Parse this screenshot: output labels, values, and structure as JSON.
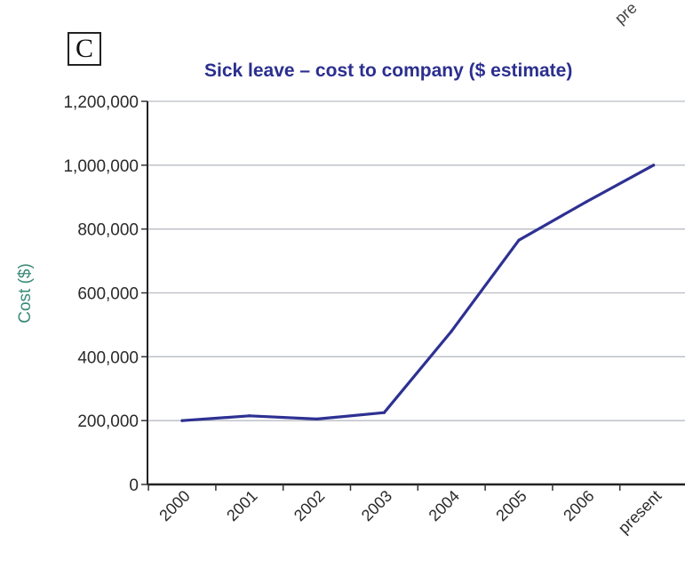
{
  "panel_label": "C",
  "corner_text": "pre",
  "chart_data": {
    "type": "line",
    "title": "Sick leave – cost to company ($ estimate)",
    "xlabel": "",
    "ylabel": "Cost ($)",
    "categories": [
      "2000",
      "2001",
      "2002",
      "2003",
      "2004",
      "2005",
      "2006",
      "present"
    ],
    "series": [
      {
        "values": [
          200000,
          215000,
          205000,
          225000,
          480000,
          765000,
          885000,
          1000000
        ]
      }
    ],
    "ylim": [
      0,
      1200000
    ],
    "yticks": [
      0,
      200000,
      400000,
      600000,
      800000,
      1000000,
      1200000
    ],
    "ytick_labels": [
      "0",
      "200,000",
      "400,000",
      "600,000",
      "800,000",
      "1,000,000",
      "1,200,000"
    ],
    "grid": true,
    "line_color": "#2e3192",
    "title_color": "#2b2f8e",
    "ylabel_color": "#3a8a78",
    "grid_color": "#b9bcc4"
  }
}
